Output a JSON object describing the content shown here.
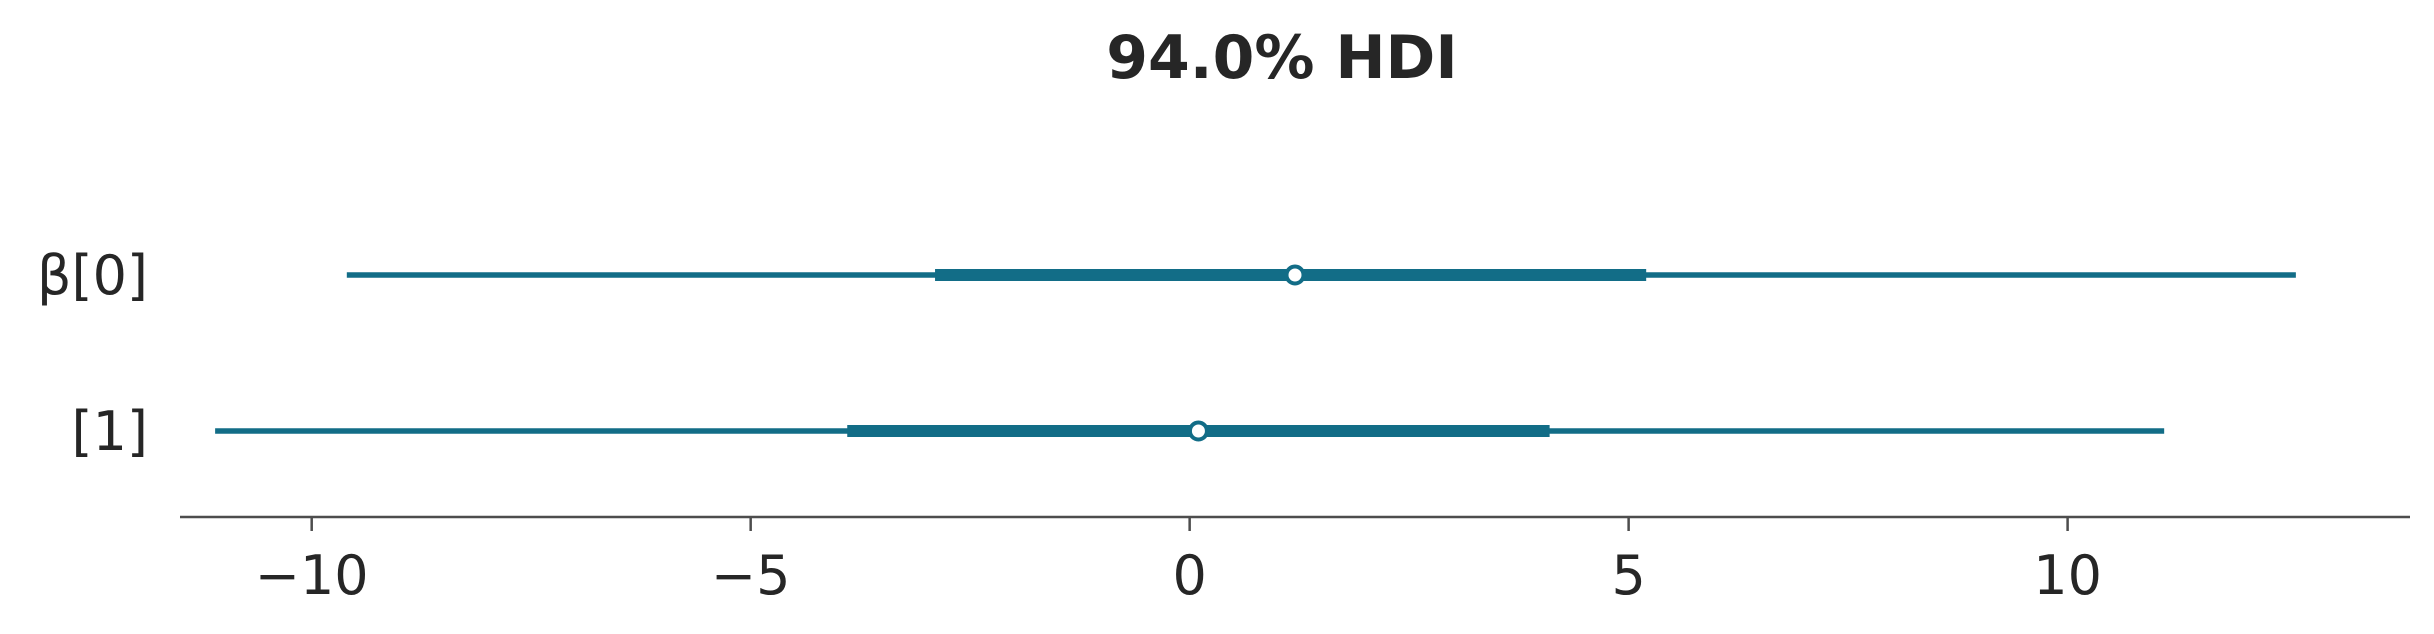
{
  "chart_data": {
    "type": "forest",
    "title": "94.0% HDI",
    "xlabel": "",
    "ylabel": "",
    "xlim": [
      -11.5,
      13.9
    ],
    "xticks": [
      -10,
      -5,
      0,
      5,
      10
    ],
    "xtick_labels": [
      "−10",
      "−5",
      "0",
      "5",
      "10"
    ],
    "grid": false,
    "color": "#126d87",
    "rows": [
      {
        "label": "β[0]",
        "median": 1.2,
        "iqr": [
          -2.9,
          5.2
        ],
        "hdi": [
          -9.6,
          12.6
        ]
      },
      {
        "label": "[1]",
        "median": 0.1,
        "iqr": [
          -3.9,
          4.1
        ],
        "hdi": [
          -11.1,
          11.1
        ]
      }
    ]
  }
}
